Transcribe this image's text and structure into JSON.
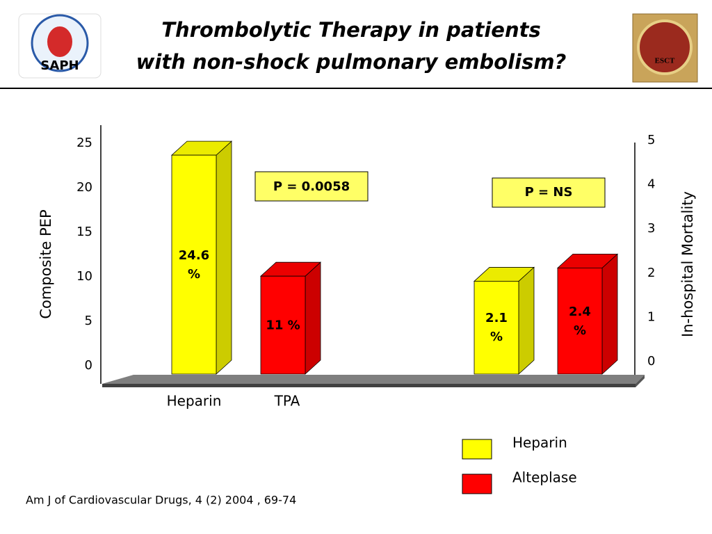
{
  "header": {
    "title_lines": [
      "Thrombolytic Therapy in patients",
      "with non-shock pulmonary embolism?"
    ],
    "logo_left": "SAPH",
    "logo_right": "ESCT"
  },
  "chart_data": {
    "type": "bar",
    "categories": [
      "Heparin",
      "TPA",
      null,
      null
    ],
    "values": [
      24.6,
      11,
      2.1,
      2.4
    ],
    "value_labels": [
      "24.6 %",
      "11 %",
      "2.1 %",
      "2.4 %"
    ],
    "colors": [
      "#ffff00",
      "#ff0000",
      "#ffff00",
      "#ff0000"
    ],
    "axes": [
      "y",
      "y",
      "y2",
      "y2"
    ],
    "ylabel": "Composite PEP",
    "y2label": "In-hospital  Mortality",
    "ylim": [
      0,
      25
    ],
    "yticks": [
      0,
      5,
      10,
      15,
      20,
      25
    ],
    "y2lim": [
      0,
      5
    ],
    "y2ticks": [
      0,
      1,
      2,
      3,
      4,
      5
    ],
    "annotations": [
      "P = 0.0058",
      "P = NS"
    ],
    "legend": [
      {
        "name": "Heparin",
        "color": "#ffff00"
      },
      {
        "name": "Alteplase",
        "color": "#ff0000"
      }
    ]
  },
  "footer": "Am J of Cardiovascular Drugs, 4 (2) 2004 , 69-74"
}
